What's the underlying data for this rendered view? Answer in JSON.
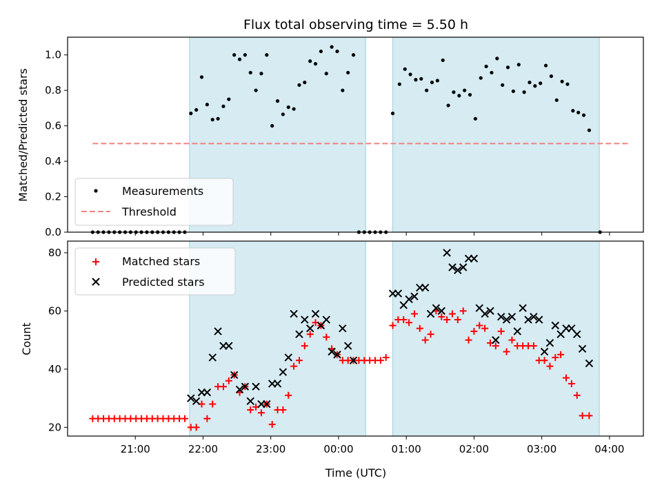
{
  "chart_data": [
    {
      "type": "scatter",
      "title": "Flux total observing time = 5.50 h",
      "xlabel": "",
      "ylabel": "Matched/Predicted stars",
      "ylim": [
        0,
        1.1
      ],
      "yticks": [
        0.0,
        0.2,
        0.4,
        0.6,
        0.8,
        1.0
      ],
      "ytick_labels": [
        "0.0",
        "0.2",
        "0.4",
        "0.6",
        "0.8",
        "1.0"
      ],
      "xlim_hours": [
        20.0,
        28.5
      ],
      "shaded_intervals_hours": [
        [
          21.8,
          24.4
        ],
        [
          24.8,
          27.85
        ]
      ],
      "legend": {
        "placement": "lower-left",
        "entries": [
          "Measurements",
          "Threshold"
        ]
      },
      "threshold": {
        "name": "Threshold",
        "y": 0.5,
        "x_range_hours": [
          20.37,
          28.3
        ],
        "color": "#f08080"
      },
      "series": [
        {
          "name": "Measurements",
          "color": "#000000",
          "points": [
            [
              20.37,
              0
            ],
            [
              20.45,
              0
            ],
            [
              20.53,
              0
            ],
            [
              20.61,
              0
            ],
            [
              20.69,
              0
            ],
            [
              20.77,
              0
            ],
            [
              20.85,
              0
            ],
            [
              20.93,
              0
            ],
            [
              21.01,
              0
            ],
            [
              21.09,
              0
            ],
            [
              21.17,
              0
            ],
            [
              21.25,
              0
            ],
            [
              21.33,
              0
            ],
            [
              21.41,
              0
            ],
            [
              21.49,
              0
            ],
            [
              21.57,
              0
            ],
            [
              21.65,
              0
            ],
            [
              21.73,
              0
            ],
            [
              21.82,
              0.67
            ],
            [
              21.9,
              0.69
            ],
            [
              21.98,
              0.875
            ],
            [
              22.06,
              0.72
            ],
            [
              22.14,
              0.635
            ],
            [
              22.22,
              0.64
            ],
            [
              22.3,
              0.71
            ],
            [
              22.38,
              0.75
            ],
            [
              22.46,
              1.0
            ],
            [
              22.54,
              0.975
            ],
            [
              22.62,
              1.0
            ],
            [
              22.7,
              0.9
            ],
            [
              22.78,
              0.8
            ],
            [
              22.86,
              0.895
            ],
            [
              22.94,
              1.0
            ],
            [
              23.02,
              0.6
            ],
            [
              23.1,
              0.74
            ],
            [
              23.18,
              0.665
            ],
            [
              23.26,
              0.705
            ],
            [
              23.34,
              0.695
            ],
            [
              23.42,
              0.83
            ],
            [
              23.5,
              0.845
            ],
            [
              23.58,
              0.965
            ],
            [
              23.66,
              0.95
            ],
            [
              23.74,
              1.02
            ],
            [
              23.82,
              0.895
            ],
            [
              23.9,
              1.045
            ],
            [
              23.98,
              1.02
            ],
            [
              24.06,
              0.8
            ],
            [
              24.14,
              0.9
            ],
            [
              24.22,
              1.0
            ],
            [
              24.3,
              0
            ],
            [
              24.38,
              0
            ],
            [
              24.46,
              0
            ],
            [
              24.54,
              0
            ],
            [
              24.62,
              0
            ],
            [
              24.7,
              0
            ],
            [
              24.8,
              0.67
            ],
            [
              24.9,
              0.835
            ],
            [
              24.98,
              0.92
            ],
            [
              25.06,
              0.89
            ],
            [
              25.14,
              0.86
            ],
            [
              25.22,
              0.865
            ],
            [
              25.3,
              0.8
            ],
            [
              25.38,
              0.845
            ],
            [
              25.46,
              0.855
            ],
            [
              25.54,
              0.97
            ],
            [
              25.62,
              0.715
            ],
            [
              25.7,
              0.79
            ],
            [
              25.78,
              0.77
            ],
            [
              25.86,
              0.8
            ],
            [
              25.94,
              0.775
            ],
            [
              26.02,
              0.64
            ],
            [
              26.1,
              0.87
            ],
            [
              26.18,
              0.935
            ],
            [
              26.26,
              0.9
            ],
            [
              26.34,
              0.98
            ],
            [
              26.42,
              0.83
            ],
            [
              26.5,
              0.93
            ],
            [
              26.58,
              0.795
            ],
            [
              26.66,
              0.945
            ],
            [
              26.74,
              0.79
            ],
            [
              26.82,
              0.845
            ],
            [
              26.9,
              0.825
            ],
            [
              26.98,
              0.84
            ],
            [
              27.06,
              0.94
            ],
            [
              27.14,
              0.88
            ],
            [
              27.22,
              0.745
            ],
            [
              27.3,
              0.85
            ],
            [
              27.38,
              0.835
            ],
            [
              27.46,
              0.685
            ],
            [
              27.54,
              0.675
            ],
            [
              27.62,
              0.66
            ],
            [
              27.7,
              0.575
            ],
            [
              27.86,
              0
            ]
          ]
        }
      ]
    },
    {
      "type": "scatter",
      "title": "",
      "xlabel": "Time (UTC)",
      "ylabel": "Count",
      "ylim": [
        17,
        84
      ],
      "yticks": [
        20,
        40,
        60,
        80
      ],
      "ytick_labels": [
        "20",
        "40",
        "60",
        "80"
      ],
      "xlim_hours": [
        20.0,
        28.5
      ],
      "xticks_hours": [
        21,
        22,
        23,
        24,
        25,
        26,
        27,
        28
      ],
      "xtick_labels": [
        "21:00",
        "22:00",
        "23:00",
        "00:00",
        "01:00",
        "02:00",
        "03:00",
        "04:00"
      ],
      "shaded_intervals_hours": [
        [
          21.8,
          24.4
        ],
        [
          24.8,
          27.85
        ]
      ],
      "legend": {
        "placement": "upper-left",
        "entries": [
          "Matched stars",
          "Predicted stars"
        ]
      },
      "series": [
        {
          "name": "Matched stars",
          "color": "#ff0000",
          "marker": "plus",
          "points": [
            [
              20.37,
              23
            ],
            [
              20.45,
              23
            ],
            [
              20.53,
              23
            ],
            [
              20.61,
              23
            ],
            [
              20.69,
              23
            ],
            [
              20.77,
              23
            ],
            [
              20.85,
              23
            ],
            [
              20.93,
              23
            ],
            [
              21.01,
              23
            ],
            [
              21.09,
              23
            ],
            [
              21.17,
              23
            ],
            [
              21.25,
              23
            ],
            [
              21.33,
              23
            ],
            [
              21.41,
              23
            ],
            [
              21.49,
              23
            ],
            [
              21.57,
              23
            ],
            [
              21.65,
              23
            ],
            [
              21.73,
              23
            ],
            [
              21.82,
              20
            ],
            [
              21.9,
              20
            ],
            [
              21.98,
              28
            ],
            [
              22.06,
              23
            ],
            [
              22.14,
              28
            ],
            [
              22.22,
              34
            ],
            [
              22.3,
              34
            ],
            [
              22.38,
              36
            ],
            [
              22.46,
              38
            ],
            [
              22.54,
              32
            ],
            [
              22.62,
              34
            ],
            [
              22.7,
              26
            ],
            [
              22.78,
              27
            ],
            [
              22.86,
              25
            ],
            [
              22.94,
              28
            ],
            [
              23.02,
              21
            ],
            [
              23.1,
              26
            ],
            [
              23.18,
              26
            ],
            [
              23.26,
              31
            ],
            [
              23.34,
              41
            ],
            [
              23.42,
              43
            ],
            [
              23.5,
              48
            ],
            [
              23.58,
              52
            ],
            [
              23.66,
              56
            ],
            [
              23.74,
              55
            ],
            [
              23.82,
              51
            ],
            [
              23.9,
              47
            ],
            [
              23.98,
              45
            ],
            [
              24.06,
              43
            ],
            [
              24.14,
              43
            ],
            [
              24.22,
              43
            ],
            [
              24.3,
              43
            ],
            [
              24.38,
              43
            ],
            [
              24.46,
              43
            ],
            [
              24.54,
              43
            ],
            [
              24.62,
              43
            ],
            [
              24.7,
              44
            ],
            [
              24.8,
              55
            ],
            [
              24.88,
              57
            ],
            [
              24.96,
              57
            ],
            [
              25.04,
              56
            ],
            [
              25.12,
              59
            ],
            [
              25.2,
              54
            ],
            [
              25.28,
              50
            ],
            [
              25.36,
              52
            ],
            [
              25.44,
              60
            ],
            [
              25.52,
              58
            ],
            [
              25.6,
              57
            ],
            [
              25.68,
              59
            ],
            [
              25.76,
              57
            ],
            [
              25.84,
              60
            ],
            [
              25.92,
              50
            ],
            [
              26.0,
              53
            ],
            [
              26.08,
              55
            ],
            [
              26.16,
              54
            ],
            [
              26.24,
              49
            ],
            [
              26.32,
              48
            ],
            [
              26.4,
              53
            ],
            [
              26.48,
              46
            ],
            [
              26.56,
              50
            ],
            [
              26.64,
              48
            ],
            [
              26.72,
              48
            ],
            [
              26.8,
              48
            ],
            [
              26.88,
              48
            ],
            [
              26.96,
              43
            ],
            [
              27.04,
              43
            ],
            [
              27.12,
              41
            ],
            [
              27.2,
              44
            ],
            [
              27.28,
              45
            ],
            [
              27.36,
              37
            ],
            [
              27.44,
              35
            ],
            [
              27.52,
              31
            ],
            [
              27.6,
              24
            ],
            [
              27.7,
              24
            ]
          ]
        },
        {
          "name": "Predicted stars",
          "color": "#000000",
          "marker": "x",
          "points": [
            [
              21.82,
              30
            ],
            [
              21.9,
              29
            ],
            [
              21.98,
              32
            ],
            [
              22.06,
              32
            ],
            [
              22.14,
              44
            ],
            [
              22.22,
              53
            ],
            [
              22.3,
              48
            ],
            [
              22.38,
              48
            ],
            [
              22.46,
              38
            ],
            [
              22.54,
              33
            ],
            [
              22.62,
              34
            ],
            [
              22.7,
              29
            ],
            [
              22.78,
              34
            ],
            [
              22.86,
              28
            ],
            [
              22.94,
              28
            ],
            [
              23.02,
              35
            ],
            [
              23.1,
              35
            ],
            [
              23.18,
              39
            ],
            [
              23.26,
              44
            ],
            [
              23.34,
              59
            ],
            [
              23.42,
              52
            ],
            [
              23.5,
              57
            ],
            [
              23.58,
              54
            ],
            [
              23.66,
              59
            ],
            [
              23.74,
              55
            ],
            [
              23.82,
              57
            ],
            [
              23.9,
              46
            ],
            [
              23.98,
              45
            ],
            [
              24.06,
              54
            ],
            [
              24.14,
              48
            ],
            [
              24.22,
              43
            ],
            [
              24.8,
              66
            ],
            [
              24.88,
              66
            ],
            [
              24.96,
              62
            ],
            [
              25.04,
              64
            ],
            [
              25.12,
              65
            ],
            [
              25.2,
              68
            ],
            [
              25.28,
              68
            ],
            [
              25.36,
              59
            ],
            [
              25.44,
              61
            ],
            [
              25.52,
              60
            ],
            [
              25.6,
              80
            ],
            [
              25.68,
              75
            ],
            [
              25.76,
              74
            ],
            [
              25.84,
              75
            ],
            [
              25.92,
              78
            ],
            [
              26.0,
              78
            ],
            [
              26.08,
              61
            ],
            [
              26.16,
              59
            ],
            [
              26.24,
              60
            ],
            [
              26.32,
              50
            ],
            [
              26.4,
              58
            ],
            [
              26.48,
              57
            ],
            [
              26.56,
              58
            ],
            [
              26.64,
              53
            ],
            [
              26.72,
              61
            ],
            [
              26.8,
              57
            ],
            [
              26.88,
              58
            ],
            [
              26.96,
              57
            ],
            [
              27.04,
              46
            ],
            [
              27.12,
              49
            ],
            [
              27.2,
              55
            ],
            [
              27.28,
              52
            ],
            [
              27.36,
              54
            ],
            [
              27.44,
              54
            ],
            [
              27.52,
              52
            ],
            [
              27.6,
              47
            ],
            [
              27.7,
              42
            ]
          ]
        }
      ]
    }
  ]
}
